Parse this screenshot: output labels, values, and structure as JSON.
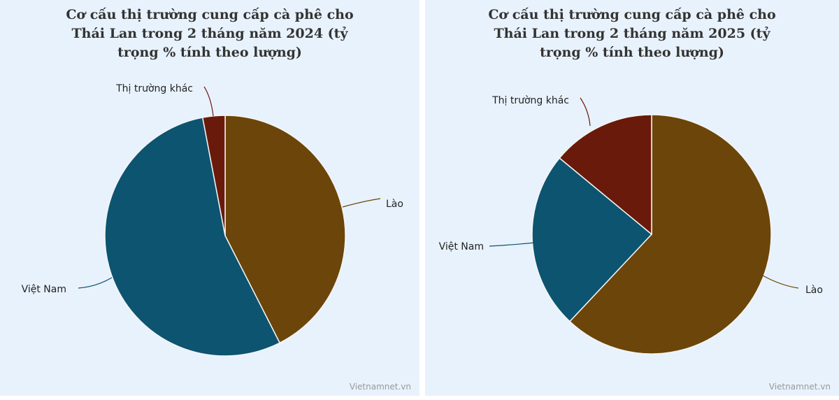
{
  "chart_data": [
    {
      "type": "pie",
      "title": "Cơ cấu thị trường cung cấp cà phê cho Thái Lan trong 2 tháng năm 2024 (tỷ trọng % tính theo lượng)",
      "slices": [
        {
          "label": "Lào",
          "value": 42.5,
          "color": "#6b4509"
        },
        {
          "label": "Việt Nam",
          "value": 54.5,
          "color": "#0c5470"
        },
        {
          "label": "Thị trường khác",
          "value": 3.0,
          "color": "#6a1a0a"
        }
      ]
    },
    {
      "type": "pie",
      "title": "Cơ cấu thị trường cung cấp cà phê cho Thái Lan trong 2 tháng năm 2025 (tỷ trọng % tính theo lượng)",
      "slices": [
        {
          "label": "Lào",
          "value": 62.0,
          "color": "#6b4509"
        },
        {
          "label": "Việt Nam",
          "value": 24.0,
          "color": "#0c5470"
        },
        {
          "label": "Thị trường khác",
          "value": 14.0,
          "color": "#6a1a0a"
        }
      ]
    }
  ],
  "credits": [
    "Vietnamnet.vn",
    "Vietnamnet.vn"
  ]
}
